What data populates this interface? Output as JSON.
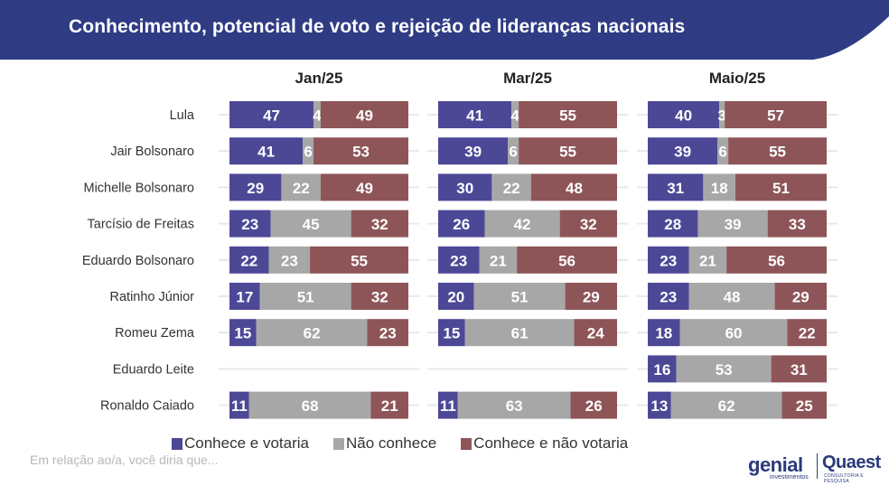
{
  "title": "Conhecimento, potencial de voto e rejeição de lideranças nacionais",
  "note": "Em relação ao/a, você diria que...",
  "logo": {
    "genial": "genial",
    "genial_sub": "investimentos",
    "quaest": "Quaest",
    "quaest_sub": "CONSULTORIA E PESQUISA"
  },
  "colors": {
    "header": "#2f3c84",
    "vote": "#4c4896",
    "unknown": "#a7a7a7",
    "reject": "#8e5558",
    "track": "#e8e8e8"
  },
  "chart_data": {
    "type": "bar",
    "stacked": "horizontal-100",
    "legend_position": "bottom",
    "categories": [
      "Lula",
      "Jair Bolsonaro",
      "Michelle Bolsonaro",
      "Tarcísio de Freitas",
      "Eduardo Bolsonaro",
      "Ratinho Júnior",
      "Romeu Zema",
      "Eduardo Leite",
      "Ronaldo Caiado"
    ],
    "series_names": [
      "Conhece e votaria",
      "Não conhece",
      "Conhece e não votaria"
    ],
    "panels": [
      {
        "title": "Jan/25",
        "rows": [
          [
            47,
            4,
            49
          ],
          [
            41,
            6,
            53
          ],
          [
            29,
            22,
            49
          ],
          [
            23,
            45,
            32
          ],
          [
            22,
            23,
            55
          ],
          [
            17,
            51,
            32
          ],
          [
            15,
            62,
            23
          ],
          null,
          [
            11,
            68,
            21
          ]
        ]
      },
      {
        "title": "Mar/25",
        "rows": [
          [
            41,
            4,
            55
          ],
          [
            39,
            6,
            55
          ],
          [
            30,
            22,
            48
          ],
          [
            26,
            42,
            32
          ],
          [
            23,
            21,
            56
          ],
          [
            20,
            51,
            29
          ],
          [
            15,
            61,
            24
          ],
          null,
          [
            11,
            63,
            26
          ]
        ]
      },
      {
        "title": "Maio/25",
        "rows": [
          [
            40,
            3,
            57
          ],
          [
            39,
            6,
            55
          ],
          [
            31,
            18,
            51
          ],
          [
            28,
            39,
            33
          ],
          [
            23,
            21,
            56
          ],
          [
            23,
            48,
            29
          ],
          [
            18,
            60,
            22
          ],
          [
            16,
            53,
            31
          ],
          [
            13,
            62,
            25
          ]
        ]
      }
    ]
  }
}
